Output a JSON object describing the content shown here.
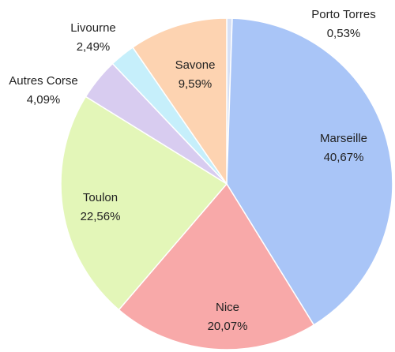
{
  "chart_data": {
    "type": "pie",
    "categories": [
      "Porto Torres",
      "Marseille",
      "Nice",
      "Toulon",
      "Autres Corse",
      "Livourne",
      "Savone"
    ],
    "values": [
      0.53,
      40.67,
      20.07,
      22.56,
      4.09,
      2.49,
      9.59
    ],
    "value_labels": [
      "0,53%",
      "40,67%",
      "20,07%",
      "22,56%",
      "4,09%",
      "2,49%",
      "9,59%"
    ],
    "colors": [
      "#d6e0f5",
      "#a9c5f7",
      "#f8a9a9",
      "#e3f6b8",
      "#d8ccf0",
      "#c6effb",
      "#fdd3b1"
    ]
  }
}
